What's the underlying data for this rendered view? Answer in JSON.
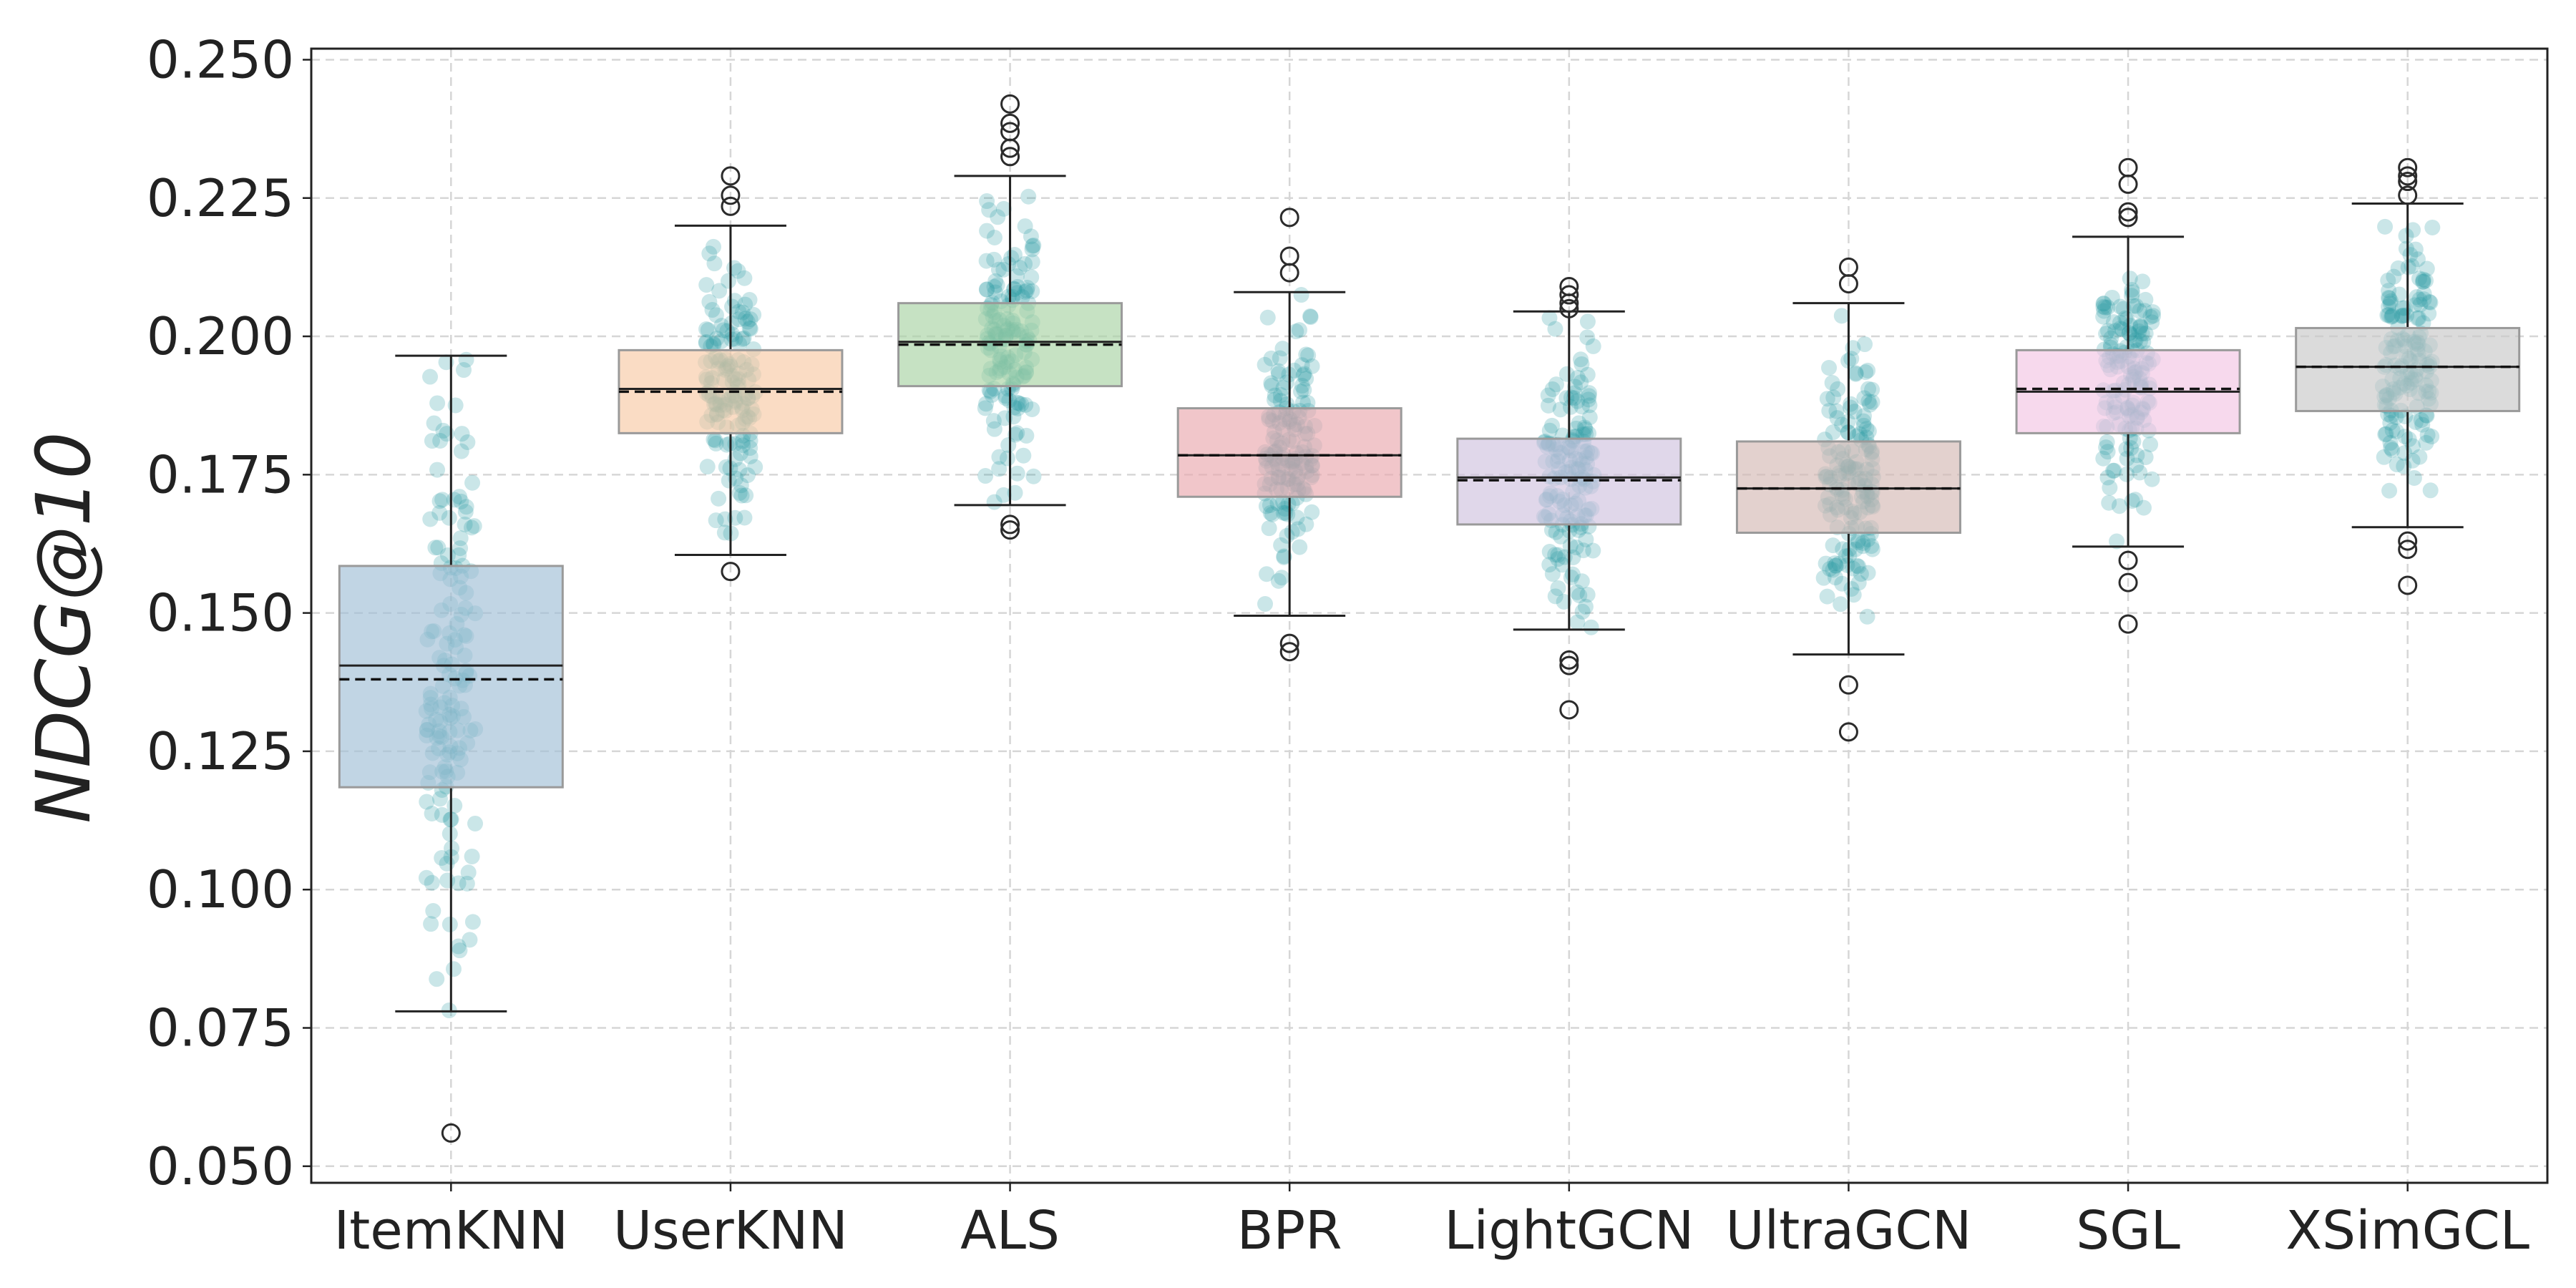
{
  "chart_data": {
    "type": "box",
    "ylabel": "NDCG@10",
    "ylim": [
      0.047,
      0.252
    ],
    "yticks": [
      0.05,
      0.075,
      0.1,
      0.125,
      0.15,
      0.175,
      0.2,
      0.225,
      0.25
    ],
    "ytick_labels": [
      "0.050",
      "0.075",
      "0.100",
      "0.125",
      "0.150",
      "0.175",
      "0.200",
      "0.225",
      "0.250"
    ],
    "grid": true,
    "median_line": "solid",
    "mean_line": "dashed",
    "points_color": "#2a9aa5",
    "categories": [
      "ItemKNN",
      "UserKNN",
      "ALS",
      "BPR",
      "LightGCN",
      "UltraGCN",
      "SGL",
      "XSimGCL"
    ],
    "series": [
      {
        "label": "ItemKNN",
        "color": "#9fbfd6",
        "q1": 0.1185,
        "median": 0.1405,
        "q3": 0.1585,
        "mean": 0.138,
        "whisker_low": 0.078,
        "whisker_high": 0.1965,
        "outliers": [
          0.056
        ]
      },
      {
        "label": "UserKNN",
        "color": "#f7c9a4",
        "q1": 0.1825,
        "median": 0.1905,
        "q3": 0.1975,
        "mean": 0.19,
        "whisker_low": 0.1605,
        "whisker_high": 0.22,
        "outliers": [
          0.1575,
          0.2235,
          0.2255,
          0.229
        ]
      },
      {
        "label": "ALS",
        "color": "#a7d2a3",
        "q1": 0.191,
        "median": 0.199,
        "q3": 0.206,
        "mean": 0.1985,
        "whisker_low": 0.1695,
        "whisker_high": 0.229,
        "outliers": [
          0.165,
          0.166,
          0.2325,
          0.234,
          0.237,
          0.2385,
          0.242
        ]
      },
      {
        "label": "BPR",
        "color": "#e9a8ae",
        "q1": 0.171,
        "median": 0.1785,
        "q3": 0.187,
        "mean": 0.1785,
        "whisker_low": 0.1495,
        "whisker_high": 0.208,
        "outliers": [
          0.143,
          0.1445,
          0.2115,
          0.2145,
          0.2215
        ]
      },
      {
        "label": "LightGCN",
        "color": "#cfc2df",
        "q1": 0.166,
        "median": 0.1745,
        "q3": 0.1815,
        "mean": 0.174,
        "whisker_low": 0.147,
        "whisker_high": 0.2045,
        "outliers": [
          0.1325,
          0.1405,
          0.1415,
          0.205,
          0.206,
          0.2075,
          0.209
        ]
      },
      {
        "label": "UltraGCN",
        "color": "#d4b8b4",
        "q1": 0.1645,
        "median": 0.1725,
        "q3": 0.181,
        "mean": 0.1725,
        "whisker_low": 0.1425,
        "whisker_high": 0.206,
        "outliers": [
          0.1285,
          0.137,
          0.2095,
          0.2125
        ]
      },
      {
        "label": "SGL",
        "color": "#f2c4e4",
        "q1": 0.1825,
        "median": 0.19,
        "q3": 0.1975,
        "mean": 0.1905,
        "whisker_low": 0.162,
        "whisker_high": 0.218,
        "outliers": [
          0.148,
          0.1555,
          0.1595,
          0.2215,
          0.2225,
          0.2275,
          0.2305
        ]
      },
      {
        "label": "XSimGCL",
        "color": "#c8c8c8",
        "q1": 0.1865,
        "median": 0.1945,
        "q3": 0.2015,
        "mean": 0.1945,
        "whisker_low": 0.1655,
        "whisker_high": 0.224,
        "outliers": [
          0.155,
          0.1615,
          0.163,
          0.2255,
          0.228,
          0.229,
          0.2305
        ]
      }
    ]
  }
}
